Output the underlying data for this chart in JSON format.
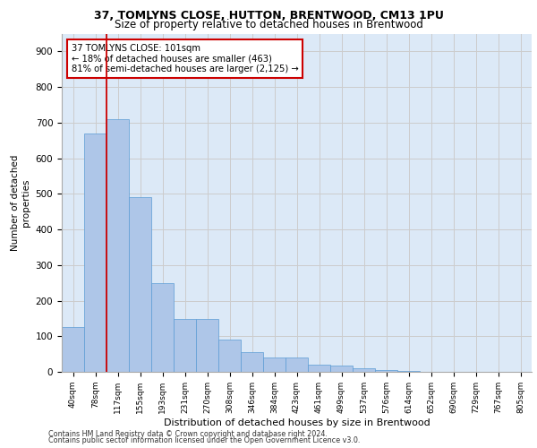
{
  "title_line1": "37, TOMLYNS CLOSE, HUTTON, BRENTWOOD, CM13 1PU",
  "title_line2": "Size of property relative to detached houses in Brentwood",
  "xlabel": "Distribution of detached houses by size in Brentwood",
  "ylabel": "Number of detached\nproperties",
  "annotation_line1": "37 TOMLYNS CLOSE: 101sqm",
  "annotation_line2": "← 18% of detached houses are smaller (463)",
  "annotation_line3": "81% of semi-detached houses are larger (2,125) →",
  "footer_line1": "Contains HM Land Registry data © Crown copyright and database right 2024.",
  "footer_line2": "Contains public sector information licensed under the Open Government Licence v3.0.",
  "bar_labels": [
    "40sqm",
    "78sqm",
    "117sqm",
    "155sqm",
    "193sqm",
    "231sqm",
    "270sqm",
    "308sqm",
    "346sqm",
    "384sqm",
    "423sqm",
    "461sqm",
    "499sqm",
    "537sqm",
    "576sqm",
    "614sqm",
    "652sqm",
    "690sqm",
    "729sqm",
    "767sqm",
    "805sqm"
  ],
  "bar_values": [
    125,
    670,
    710,
    490,
    250,
    148,
    148,
    90,
    55,
    40,
    40,
    20,
    17,
    10,
    5,
    3,
    1,
    1,
    1,
    1,
    1
  ],
  "bar_color": "#aec6e8",
  "bar_edge_color": "#5b9bd5",
  "vline_x": 1.5,
  "vline_color": "#cc0000",
  "annotation_box_color": "#cc0000",
  "ylim": [
    0,
    950
  ],
  "yticks": [
    0,
    100,
    200,
    300,
    400,
    500,
    600,
    700,
    800,
    900
  ],
  "grid_color": "#cccccc",
  "bg_color": "#dce9f7",
  "fig_bg_color": "#ffffff"
}
